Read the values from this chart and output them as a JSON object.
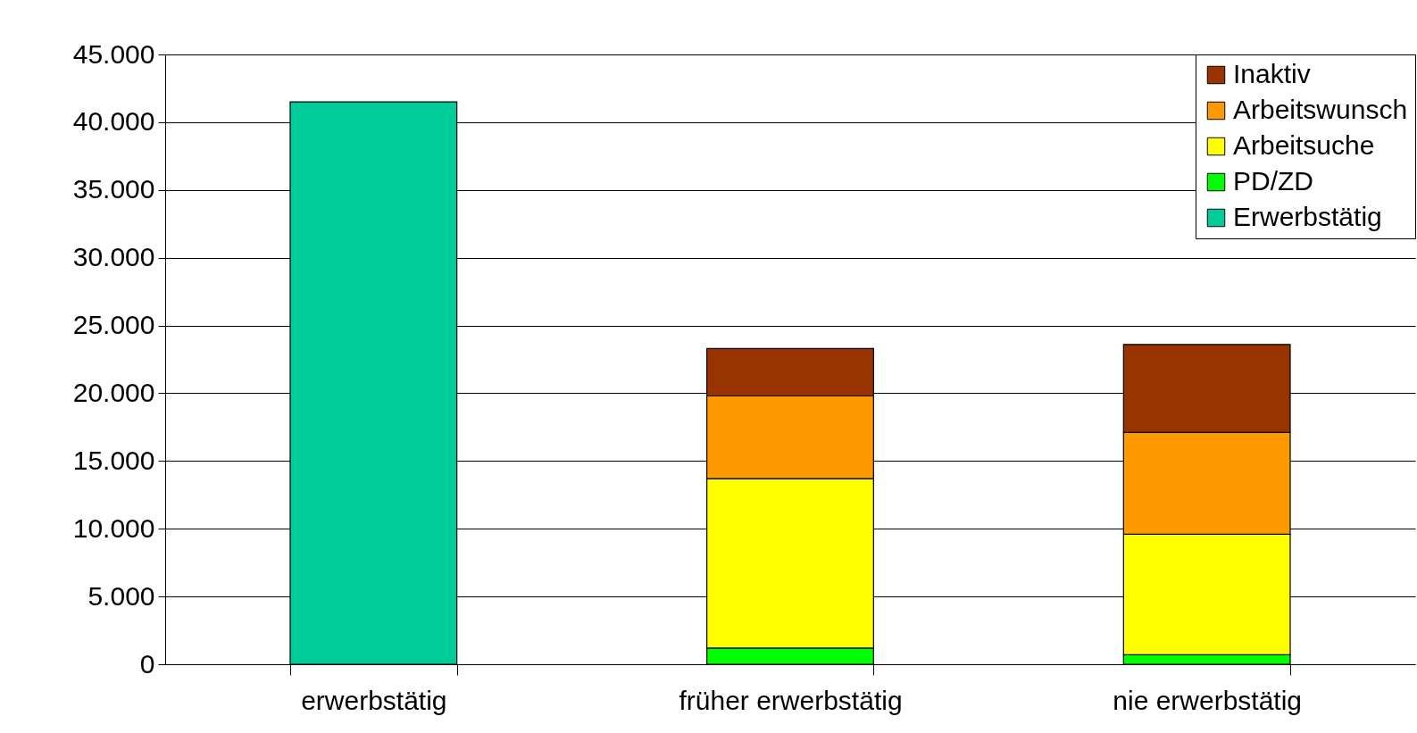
{
  "chart_data": {
    "type": "bar",
    "stacked": true,
    "categories": [
      "erwerbstätig",
      "früher erwerbstätig",
      "nie erwerbstätig"
    ],
    "series": [
      {
        "name": "Erwerbstätig",
        "color": "#00cc99",
        "values": [
          41500,
          null,
          null
        ]
      },
      {
        "name": "PD/ZD",
        "color": "#00ff00",
        "values": [
          null,
          1200,
          700
        ]
      },
      {
        "name": "Arbeitsuche",
        "color": "#ffff00",
        "values": [
          null,
          12500,
          8900
        ]
      },
      {
        "name": "Arbeitswunsch",
        "color": "#ff9900",
        "values": [
          null,
          6100,
          7500
        ]
      },
      {
        "name": "Inaktiv",
        "color": "#993300",
        "values": [
          null,
          3500,
          6500
        ]
      }
    ],
    "ylim": [
      0,
      45000
    ],
    "yticks": [
      0,
      {
        "value": 5000,
        "label": "5.000"
      },
      {
        "value": 10000,
        "label": "10.000"
      },
      {
        "value": 15000,
        "label": "15.000"
      },
      {
        "value": 20000,
        "label": "20.000"
      },
      {
        "value": 25000,
        "label": "25.000"
      },
      {
        "value": 30000,
        "label": "30.000"
      },
      {
        "value": 35000,
        "label": "35.000"
      },
      {
        "value": 40000,
        "label": "40.000"
      },
      {
        "value": 45000,
        "label": "45.000"
      }
    ],
    "grid": "y",
    "legend": "top right"
  }
}
